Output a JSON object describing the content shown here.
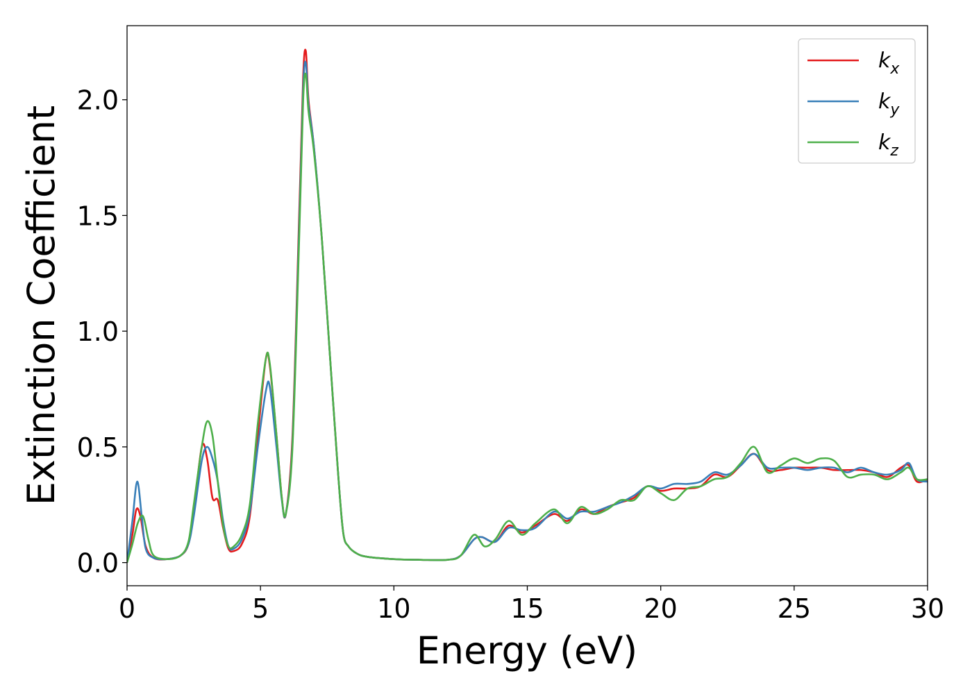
{
  "chart_data": {
    "type": "line",
    "title": "",
    "xlabel": "Energy (eV)",
    "ylabel": "Extinction Coefficient",
    "xlim": [
      0,
      30
    ],
    "ylim": [
      -0.1,
      2.32
    ],
    "xticks": [
      {
        "value": 0,
        "label": "0"
      },
      {
        "value": 5,
        "label": "5"
      },
      {
        "value": 10,
        "label": "10"
      },
      {
        "value": 15,
        "label": "15"
      },
      {
        "value": 20,
        "label": "20"
      },
      {
        "value": 25,
        "label": "25"
      },
      {
        "value": 30,
        "label": "30"
      }
    ],
    "yticks": [
      {
        "value": 0.0,
        "label": "0.0"
      },
      {
        "value": 0.5,
        "label": "0.5"
      },
      {
        "value": 1.0,
        "label": "1.0"
      },
      {
        "value": 1.5,
        "label": "1.5"
      },
      {
        "value": 2.0,
        "label": "2.0"
      }
    ],
    "grid": false,
    "legend_position": "top-right",
    "series": [
      {
        "name": "k_x",
        "label_main": "k",
        "label_sub": "x",
        "color": "#e41a1c",
        "x": [
          0.0,
          0.2,
          0.35,
          0.5,
          0.7,
          1.0,
          1.5,
          2.0,
          2.3,
          2.5,
          2.8,
          3.0,
          3.2,
          3.4,
          3.6,
          3.8,
          4.0,
          4.3,
          4.6,
          4.9,
          5.2,
          5.35,
          5.6,
          5.8,
          5.95,
          6.2,
          6.45,
          6.6,
          6.7,
          6.8,
          7.0,
          7.3,
          7.6,
          7.9,
          8.1,
          8.3,
          8.6,
          9.0,
          10.0,
          11.0,
          12.0,
          12.5,
          13.0,
          13.3,
          13.8,
          14.3,
          14.8,
          15.3,
          16.0,
          16.5,
          17.0,
          17.5,
          18.0,
          18.5,
          19.0,
          19.5,
          20.0,
          20.5,
          21.0,
          21.5,
          22.0,
          22.5,
          23.0,
          23.5,
          24.0,
          24.5,
          25.0,
          25.5,
          26.0,
          26.5,
          27.0,
          27.5,
          28.0,
          28.5,
          29.0,
          29.3,
          29.6,
          30.0
        ],
        "y": [
          0.0,
          0.12,
          0.23,
          0.2,
          0.07,
          0.02,
          0.015,
          0.03,
          0.08,
          0.22,
          0.5,
          0.45,
          0.28,
          0.27,
          0.15,
          0.06,
          0.05,
          0.08,
          0.2,
          0.55,
          0.88,
          0.85,
          0.55,
          0.28,
          0.21,
          0.55,
          1.5,
          2.1,
          2.21,
          2.0,
          1.8,
          1.4,
          0.9,
          0.4,
          0.13,
          0.07,
          0.04,
          0.025,
          0.015,
          0.012,
          0.012,
          0.03,
          0.1,
          0.11,
          0.09,
          0.16,
          0.13,
          0.16,
          0.21,
          0.18,
          0.23,
          0.21,
          0.24,
          0.26,
          0.28,
          0.33,
          0.31,
          0.32,
          0.32,
          0.33,
          0.38,
          0.37,
          0.42,
          0.47,
          0.4,
          0.4,
          0.41,
          0.41,
          0.41,
          0.4,
          0.4,
          0.4,
          0.39,
          0.37,
          0.41,
          0.42,
          0.35,
          0.36
        ]
      },
      {
        "name": "k_y",
        "label_main": "k",
        "label_sub": "y",
        "color": "#377eb8",
        "x": [
          0.0,
          0.2,
          0.38,
          0.55,
          0.7,
          1.0,
          1.5,
          2.0,
          2.3,
          2.5,
          2.8,
          3.0,
          3.2,
          3.4,
          3.6,
          3.8,
          4.0,
          4.3,
          4.6,
          4.9,
          5.2,
          5.35,
          5.6,
          5.8,
          5.95,
          6.2,
          6.45,
          6.6,
          6.7,
          6.8,
          7.0,
          7.3,
          7.6,
          7.9,
          8.1,
          8.3,
          8.6,
          9.0,
          10.0,
          11.0,
          12.0,
          12.5,
          13.0,
          13.3,
          13.8,
          14.3,
          14.8,
          15.3,
          16.0,
          16.5,
          17.0,
          17.5,
          18.0,
          18.5,
          19.0,
          19.5,
          20.0,
          20.5,
          21.0,
          21.5,
          22.0,
          22.5,
          23.0,
          23.5,
          24.0,
          24.5,
          25.0,
          25.5,
          26.0,
          26.5,
          27.0,
          27.5,
          28.0,
          28.5,
          29.0,
          29.3,
          29.6,
          30.0
        ],
        "y": [
          0.0,
          0.18,
          0.35,
          0.2,
          0.06,
          0.02,
          0.015,
          0.03,
          0.08,
          0.2,
          0.44,
          0.5,
          0.45,
          0.35,
          0.18,
          0.07,
          0.06,
          0.1,
          0.22,
          0.5,
          0.74,
          0.76,
          0.5,
          0.27,
          0.21,
          0.52,
          1.45,
          2.05,
          2.16,
          1.98,
          1.8,
          1.4,
          0.9,
          0.4,
          0.13,
          0.07,
          0.04,
          0.025,
          0.015,
          0.012,
          0.012,
          0.03,
          0.1,
          0.11,
          0.09,
          0.15,
          0.14,
          0.15,
          0.22,
          0.19,
          0.22,
          0.22,
          0.24,
          0.26,
          0.29,
          0.33,
          0.32,
          0.34,
          0.34,
          0.35,
          0.39,
          0.38,
          0.42,
          0.47,
          0.41,
          0.41,
          0.41,
          0.4,
          0.41,
          0.41,
          0.39,
          0.41,
          0.39,
          0.38,
          0.4,
          0.43,
          0.36,
          0.35
        ]
      },
      {
        "name": "k_z",
        "label_main": "k",
        "label_sub": "z",
        "color": "#4daf4a",
        "x": [
          0.0,
          0.2,
          0.4,
          0.6,
          0.8,
          1.0,
          1.5,
          2.0,
          2.3,
          2.5,
          2.8,
          3.0,
          3.2,
          3.4,
          3.6,
          3.8,
          4.0,
          4.3,
          4.6,
          4.9,
          5.2,
          5.35,
          5.6,
          5.8,
          5.95,
          6.2,
          6.45,
          6.6,
          6.7,
          6.8,
          7.0,
          7.3,
          7.6,
          7.9,
          8.1,
          8.3,
          8.6,
          9.0,
          10.0,
          11.0,
          12.0,
          12.5,
          13.0,
          13.4,
          13.8,
          14.3,
          14.8,
          15.3,
          16.0,
          16.5,
          17.0,
          17.5,
          18.0,
          18.5,
          19.0,
          19.5,
          20.0,
          20.5,
          21.0,
          21.5,
          22.0,
          22.5,
          23.0,
          23.5,
          24.0,
          24.5,
          25.0,
          25.5,
          26.0,
          26.5,
          27.0,
          27.5,
          28.0,
          28.5,
          29.0,
          29.3,
          29.6,
          30.0
        ],
        "y": [
          0.0,
          0.08,
          0.17,
          0.2,
          0.1,
          0.03,
          0.015,
          0.03,
          0.09,
          0.25,
          0.5,
          0.61,
          0.55,
          0.35,
          0.16,
          0.07,
          0.07,
          0.12,
          0.25,
          0.6,
          0.88,
          0.86,
          0.55,
          0.28,
          0.21,
          0.5,
          1.4,
          2.0,
          2.11,
          1.95,
          1.78,
          1.4,
          0.9,
          0.4,
          0.13,
          0.07,
          0.04,
          0.025,
          0.015,
          0.012,
          0.012,
          0.03,
          0.12,
          0.07,
          0.1,
          0.18,
          0.12,
          0.17,
          0.23,
          0.17,
          0.24,
          0.21,
          0.23,
          0.27,
          0.27,
          0.33,
          0.3,
          0.27,
          0.32,
          0.33,
          0.36,
          0.37,
          0.43,
          0.5,
          0.39,
          0.42,
          0.45,
          0.43,
          0.45,
          0.44,
          0.37,
          0.38,
          0.38,
          0.36,
          0.39,
          0.41,
          0.36,
          0.36
        ]
      }
    ]
  }
}
